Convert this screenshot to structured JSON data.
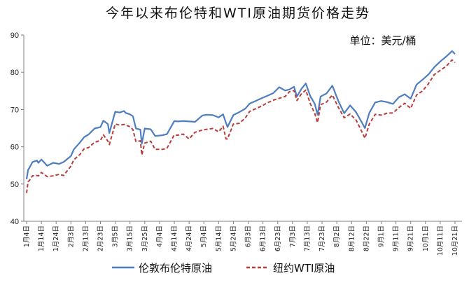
{
  "chart_data": {
    "type": "line",
    "title": "今年以来布伦特和WTI原油期货价格走势",
    "unit_label": "单位：美元/桶",
    "ylim": [
      40,
      90
    ],
    "y_ticks": [
      "40",
      "50",
      "60",
      "70",
      "80",
      "90"
    ],
    "grid": false,
    "legend_position": "bottom",
    "x_tick_labels": [
      "1月4日",
      "1月14日",
      "1月24日",
      "2月3日",
      "2月13日",
      "2月23日",
      "3月5日",
      "3月15日",
      "3月25日",
      "4月4日",
      "4月14日",
      "4月24日",
      "5月4日",
      "5月14日",
      "5月24日",
      "6月3日",
      "6月13日",
      "6月23日",
      "7月3日",
      "7月13日",
      "7月23日",
      "8月2日",
      "8月12日",
      "8月22日",
      "9月1日",
      "9月11日",
      "9月21日",
      "10月1日",
      "10月11日",
      "10月21日"
    ],
    "series": [
      {
        "name": "伦敦布伦特原油",
        "color": "#4f7dbf",
        "style": "solid",
        "x": [
          "1月4日",
          "1月5日",
          "1月6日",
          "1月8日",
          "1月11日",
          "1月12日",
          "1月14日",
          "1月18日",
          "1月22日",
          "1月26日",
          "1月29日",
          "2月3日",
          "2月5日",
          "2月9日",
          "2月12日",
          "2月15日",
          "2月19日",
          "2月23日",
          "2月25日",
          "2月28日",
          "3月1日",
          "3月5日",
          "3月8日",
          "3月11日",
          "3月12日",
          "3月15日",
          "3月17日",
          "3月19日",
          "3月22日",
          "3月23日",
          "3月25日",
          "3月29日",
          "4月1日",
          "4月6日",
          "4月9日",
          "4月14日",
          "4月16日",
          "4月20日",
          "4月24日",
          "4月28日",
          "5月3日",
          "5月6日",
          "5月10日",
          "5月14日",
          "5月17日",
          "5月19日",
          "5月20日",
          "5月24日",
          "5月28日",
          "6月1日",
          "6月4日",
          "6月8日",
          "6月12日",
          "6月16日",
          "6月20日",
          "6月24日",
          "6月28日",
          "7月1日",
          "7月4日",
          "7月6日",
          "7月9日",
          "7月12日",
          "7月15日",
          "7月18日",
          "7月20日",
          "7月22日",
          "7月26日",
          "7月30日",
          "8月3日",
          "8月7日",
          "8月11日",
          "8月15日",
          "8月19日",
          "8月21日",
          "8月24日",
          "8月28日",
          "9月1日",
          "9月5日",
          "9月9日",
          "9月13日",
          "9月17日",
          "9月21日",
          "9月25日",
          "9月29日",
          "10月3日",
          "10月7日",
          "10月11日",
          "10月15日",
          "10月19日",
          "10月21日"
        ],
        "values": [
          51.3,
          53.8,
          54.4,
          55.9,
          56.3,
          55.7,
          56.6,
          54.9,
          55.7,
          55.4,
          55.9,
          57.5,
          59.3,
          61.1,
          62.6,
          63.3,
          64.9,
          65.3,
          67.0,
          66.1,
          63.7,
          69.4,
          69.2,
          69.6,
          69.1,
          68.7,
          68.2,
          64.9,
          64.6,
          60.8,
          64.9,
          64.7,
          62.9,
          63.1,
          63.4,
          66.9,
          66.8,
          66.9,
          66.8,
          66.7,
          68.4,
          68.6,
          68.5,
          67.9,
          68.7,
          66.4,
          65.3,
          68.5,
          69.3,
          70.2,
          71.6,
          72.3,
          73.0,
          73.7,
          74.4,
          76.0,
          75.1,
          75.4,
          76.1,
          73.5,
          75.5,
          77.0,
          73.6,
          71.6,
          68.6,
          73.5,
          74.3,
          76.4,
          72.3,
          69.0,
          71.1,
          69.3,
          66.5,
          65.0,
          69.1,
          71.9,
          72.3,
          72.0,
          71.5,
          73.3,
          74.1,
          72.9,
          76.7,
          78.0,
          79.4,
          81.4,
          82.9,
          84.2,
          85.7,
          84.9
        ]
      },
      {
        "name": "纽约WTI原油",
        "color": "#b63e3c",
        "style": "dashed",
        "x": [
          "1月4日",
          "1月5日",
          "1月6日",
          "1月8日",
          "1月11日",
          "1月12日",
          "1月14日",
          "1月18日",
          "1月22日",
          "1月26日",
          "1月29日",
          "2月3日",
          "2月5日",
          "2月9日",
          "2月12日",
          "2月15日",
          "2月19日",
          "2月23日",
          "2月25日",
          "2月28日",
          "3月1日",
          "3月5日",
          "3月8日",
          "3月11日",
          "3月12日",
          "3月15日",
          "3月17日",
          "3月19日",
          "3月22日",
          "3月23日",
          "3月25日",
          "3月29日",
          "4月1日",
          "4月6日",
          "4月9日",
          "4月14日",
          "4月16日",
          "4月20日",
          "4月24日",
          "4月28日",
          "5月3日",
          "5月6日",
          "5月10日",
          "5月14日",
          "5月17日",
          "5月19日",
          "5月20日",
          "5月24日",
          "5月28日",
          "6月1日",
          "6月4日",
          "6月8日",
          "6月12日",
          "6月16日",
          "6月20日",
          "6月24日",
          "6月28日",
          "7月1日",
          "7月4日",
          "7月6日",
          "7月9日",
          "7月12日",
          "7月15日",
          "7月18日",
          "7月20日",
          "7月22日",
          "7月26日",
          "7月30日",
          "8月3日",
          "8月7日",
          "8月11日",
          "8月15日",
          "8月19日",
          "8月21日",
          "8月24日",
          "8月28日",
          "9月1日",
          "9月5日",
          "9月9日",
          "9月13日",
          "9月17日",
          "9月21日",
          "9月25日",
          "9月29日",
          "10月3日",
          "10月7日",
          "10月11日",
          "10月15日",
          "10月19日",
          "10月21日"
        ],
        "values": [
          47.6,
          50.6,
          51.0,
          52.2,
          52.3,
          52.2,
          53.1,
          52.0,
          52.2,
          52.6,
          52.3,
          54.8,
          56.5,
          57.9,
          59.5,
          59.8,
          61.2,
          61.7,
          63.2,
          61.5,
          60.6,
          66.1,
          65.8,
          66.0,
          65.8,
          65.4,
          64.6,
          61.4,
          61.6,
          57.8,
          61.0,
          61.5,
          59.3,
          59.3,
          59.6,
          63.2,
          63.1,
          63.4,
          62.1,
          63.9,
          64.5,
          64.7,
          64.9,
          64.0,
          65.5,
          62.1,
          62.1,
          66.1,
          66.3,
          67.7,
          69.5,
          70.2,
          70.9,
          71.8,
          72.5,
          73.0,
          73.5,
          74.8,
          75.1,
          72.4,
          74.2,
          75.2,
          71.6,
          69.0,
          66.5,
          71.3,
          72.0,
          73.9,
          70.6,
          67.8,
          68.8,
          67.2,
          64.0,
          62.3,
          66.1,
          68.7,
          68.5,
          69.0,
          69.1,
          70.5,
          71.7,
          70.3,
          73.9,
          75.0,
          76.9,
          79.4,
          80.5,
          81.6,
          83.3,
          82.6
        ]
      }
    ]
  }
}
